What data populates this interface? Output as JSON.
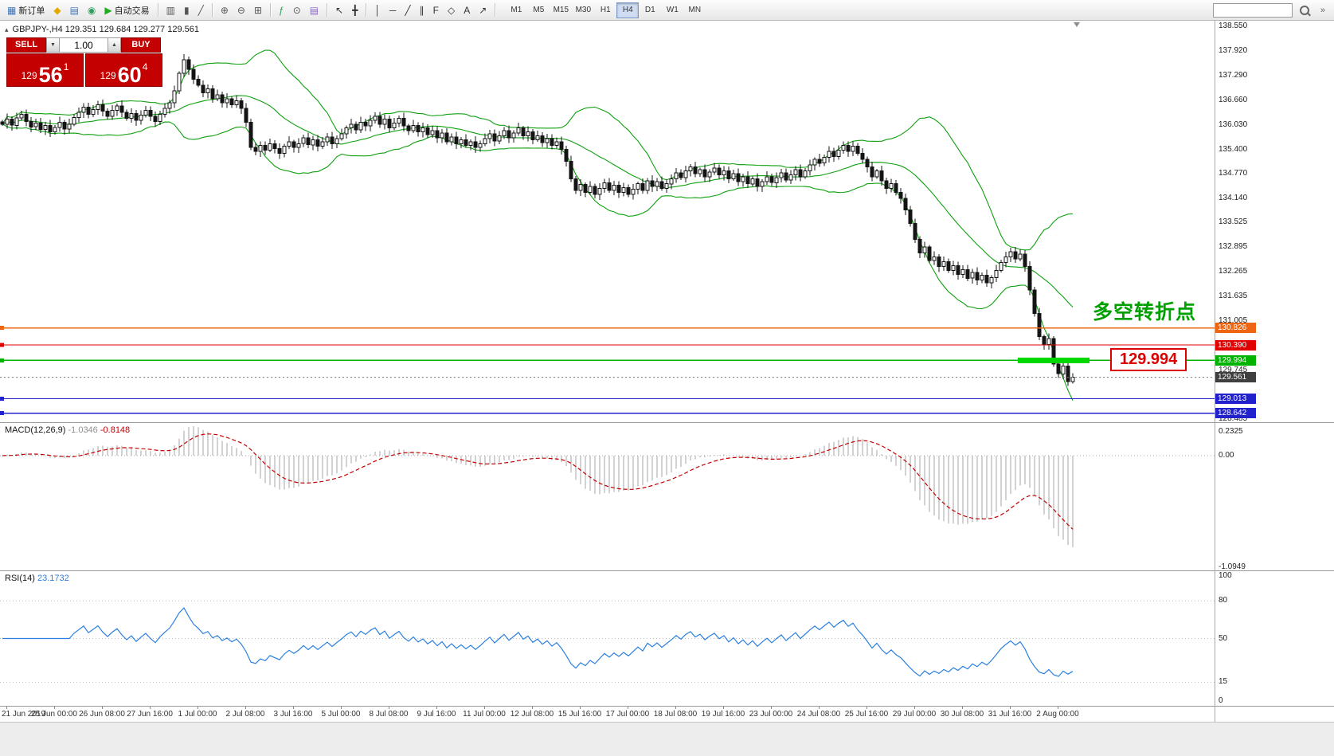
{
  "colors": {
    "candle_up": "#ffffff",
    "candle_down": "#141414",
    "candle_outline": "#141414",
    "bollinger": "#0fa00f",
    "macd_histogram": "#b3b3b3",
    "macd_signal": "#c40000",
    "rsi_line": "#2a7fde",
    "trade_red": "#c40000",
    "current_badge": "#3f3f3f",
    "grid_text": "#222222"
  },
  "toolbar": {
    "items": [
      {
        "kind": "button",
        "name": "new-order-button",
        "icon_name": "new-order-icon",
        "glyph": "▦",
        "icon_color": "#3c78c0",
        "label": "新订单"
      },
      {
        "kind": "icon",
        "name": "metaeditor-button",
        "icon_name": "metaeditor-icon",
        "glyph": "◆",
        "icon_color": "#e0a800"
      },
      {
        "kind": "icon",
        "name": "terminal-button",
        "icon_name": "terminal-icon",
        "glyph": "▤",
        "icon_color": "#3c78c0"
      },
      {
        "kind": "icon",
        "name": "navigator-button",
        "icon_name": "navigator-icon",
        "glyph": "◉",
        "icon_color": "#2e9e5b"
      },
      {
        "kind": "button",
        "name": "autotrading-button",
        "icon_name": "autotrading-play-icon",
        "glyph": "▶",
        "icon_color": "#1fae1f",
        "label": "自动交易"
      },
      {
        "kind": "sep"
      },
      {
        "kind": "icon",
        "name": "bar-chart-button",
        "icon_name": "bar-chart-icon",
        "glyph": "▥",
        "icon_color": "#555555"
      },
      {
        "kind": "icon",
        "name": "candlestick-chart-button",
        "icon_name": "candlestick-chart-icon",
        "glyph": "▮",
        "icon_color": "#555555"
      },
      {
        "kind": "icon",
        "name": "line-chart-button",
        "icon_name": "line-chart-icon",
        "glyph": "╱",
        "icon_color": "#555555"
      },
      {
        "kind": "sep"
      },
      {
        "kind": "icon",
        "name": "zoom-in-button",
        "icon_name": "zoom-in-icon",
        "glyph": "⊕",
        "icon_color": "#555555"
      },
      {
        "kind": "icon",
        "name": "zoom-out-button",
        "icon_name": "zoom-out-icon",
        "glyph": "⊖",
        "icon_color": "#555555"
      },
      {
        "kind": "icon",
        "name": "tile-windows-button",
        "icon_name": "tile-windows-icon",
        "glyph": "⊞",
        "icon_color": "#555555"
      },
      {
        "kind": "sep"
      },
      {
        "kind": "icon",
        "name": "indicators-button",
        "icon_name": "indicators-icon",
        "glyph": "ƒ",
        "icon_color": "#2e9e5b"
      },
      {
        "kind": "icon",
        "name": "periods-button",
        "icon_name": "clock-icon",
        "glyph": "⊙",
        "icon_color": "#555555"
      },
      {
        "kind": "icon",
        "name": "templates-button",
        "icon_name": "templates-icon",
        "glyph": "▤",
        "icon_color": "#8a6ac0"
      },
      {
        "kind": "sep"
      },
      {
        "kind": "icon",
        "name": "cursor-button",
        "icon_name": "cursor-icon",
        "glyph": "↖",
        "icon_color": "#333333"
      },
      {
        "kind": "icon",
        "name": "crosshair-button",
        "icon_name": "crosshair-icon",
        "glyph": "╋",
        "icon_color": "#333333"
      },
      {
        "kind": "sep"
      },
      {
        "kind": "icon",
        "name": "vertical-line-button",
        "icon_name": "vertical-line-icon",
        "glyph": "│",
        "icon_color": "#333333"
      },
      {
        "kind": "icon",
        "name": "horizontal-line-button",
        "icon_name": "horizontal-line-icon",
        "glyph": "─",
        "icon_color": "#333333"
      },
      {
        "kind": "icon",
        "name": "trendline-button",
        "icon_name": "trendline-icon",
        "glyph": "╱",
        "icon_color": "#333333"
      },
      {
        "kind": "icon",
        "name": "channel-button",
        "icon_name": "channel-icon",
        "glyph": "∥",
        "icon_color": "#333333"
      },
      {
        "kind": "icon",
        "name": "fibonacci-button",
        "icon_name": "fibonacci-icon",
        "glyph": "F",
        "icon_color": "#333333"
      },
      {
        "kind": "icon",
        "name": "shapes-button",
        "icon_name": "shapes-icon",
        "glyph": "◇",
        "icon_color": "#333333"
      },
      {
        "kind": "icon",
        "name": "text-button",
        "icon_name": "text-icon",
        "glyph": "A",
        "icon_color": "#333333"
      },
      {
        "kind": "icon",
        "name": "arrow-tools-button",
        "icon_name": "arrow-tools-icon",
        "glyph": "↗",
        "icon_color": "#333333"
      },
      {
        "kind": "sep"
      }
    ],
    "timeframes": [
      "M1",
      "M5",
      "M15",
      "M30",
      "H1",
      "H4",
      "D1",
      "W1",
      "MN"
    ],
    "active_timeframe": "H4",
    "search_value": "",
    "overflow_glyph": "»"
  },
  "chart": {
    "header": "GBPJPY-,H4  129.351 129.684 129.277 129.561",
    "one_click_toggle_glyph": "▴",
    "trade_panel": {
      "sell_label": "SELL",
      "buy_label": "BUY",
      "volume": "1.00",
      "volume_down_glyph": "▼",
      "volume_up_glyph": "▲",
      "sell_price": {
        "small": "129",
        "big": "56",
        "sup": "1"
      },
      "buy_price": {
        "small": "129",
        "big": "60",
        "sup": "4"
      }
    },
    "annotations": {
      "turning_point": {
        "text": "多空转折点",
        "color": "#00a000"
      },
      "price_callout": {
        "text": "129.994",
        "color": "#dd0000"
      },
      "highlight_segment": {
        "price": 129.994,
        "x": 1278,
        "width": 90,
        "color": "#00d800"
      }
    }
  },
  "panels": {
    "macd": {
      "name": "MACD(12,26,9)",
      "value": "-1.0346",
      "signal": "-0.8148"
    },
    "rsi": {
      "name": "RSI(14)",
      "value": "23.1732"
    }
  },
  "chart_data": {
    "type": "candlestick",
    "symbol": "GBPJPY-",
    "timeframe": "H4",
    "ohlc_display": {
      "open": 129.351,
      "high": 129.684,
      "low": 129.277,
      "close": 129.561
    },
    "price_range": [
      128.41,
      138.7
    ],
    "current_price": 129.561,
    "y_ticks": [
      138.55,
      137.92,
      137.29,
      136.66,
      136.03,
      135.4,
      134.77,
      134.14,
      133.525,
      132.895,
      132.265,
      131.635,
      131.005,
      129.745,
      128.485
    ],
    "horizontal_levels": [
      {
        "price": 130.826,
        "color": "#ee6611"
      },
      {
        "price": 130.39,
        "color": "#e00000"
      },
      {
        "price": 129.994,
        "color": "#00b300"
      },
      {
        "price": 129.013,
        "color": "#2222cc"
      },
      {
        "price": 128.642,
        "color": "#2222cc"
      }
    ],
    "closes": [
      136.05,
      136.18,
      136.02,
      136.21,
      136.3,
      136.12,
      135.98,
      136.08,
      135.91,
      136.02,
      135.85,
      135.96,
      136.1,
      135.92,
      136.05,
      136.22,
      136.35,
      136.48,
      136.3,
      136.42,
      136.55,
      136.38,
      136.25,
      136.4,
      136.52,
      136.35,
      136.2,
      136.32,
      136.15,
      136.28,
      136.4,
      136.25,
      136.12,
      136.3,
      136.45,
      136.6,
      136.9,
      137.35,
      137.7,
      137.45,
      137.2,
      137.05,
      136.85,
      136.95,
      136.7,
      136.8,
      136.6,
      136.7,
      136.55,
      136.65,
      136.45,
      136.1,
      135.45,
      135.35,
      135.5,
      135.38,
      135.55,
      135.42,
      135.3,
      135.48,
      135.6,
      135.45,
      135.55,
      135.7,
      135.52,
      135.65,
      135.48,
      135.6,
      135.72,
      135.55,
      135.68,
      135.8,
      135.95,
      136.05,
      135.9,
      136.1,
      136.0,
      136.15,
      136.25,
      136.05,
      136.18,
      135.95,
      136.08,
      136.2,
      136.0,
      135.88,
      136.02,
      135.85,
      135.95,
      135.78,
      135.88,
      135.7,
      135.82,
      135.6,
      135.72,
      135.55,
      135.65,
      135.5,
      135.6,
      135.45,
      135.55,
      135.68,
      135.8,
      135.62,
      135.75,
      135.88,
      135.7,
      135.82,
      135.95,
      135.75,
      135.85,
      135.65,
      135.75,
      135.58,
      135.68,
      135.5,
      135.6,
      135.4,
      135.1,
      134.65,
      134.35,
      134.5,
      134.3,
      134.45,
      134.25,
      134.4,
      134.55,
      134.35,
      134.48,
      134.3,
      134.42,
      134.25,
      134.38,
      134.52,
      134.35,
      134.6,
      134.45,
      134.58,
      134.4,
      134.52,
      134.65,
      134.8,
      134.68,
      134.85,
      134.95,
      134.78,
      134.88,
      134.7,
      134.82,
      134.92,
      134.75,
      134.85,
      134.65,
      134.78,
      134.58,
      134.7,
      134.52,
      134.65,
      134.45,
      134.58,
      134.7,
      134.55,
      134.68,
      134.8,
      134.62,
      134.75,
      134.88,
      134.7,
      134.85,
      135.0,
      135.15,
      135.05,
      135.2,
      135.35,
      135.22,
      135.38,
      135.5,
      135.35,
      135.48,
      135.3,
      135.15,
      134.95,
      134.7,
      134.85,
      134.6,
      134.4,
      134.52,
      134.3,
      134.15,
      133.85,
      133.5,
      133.1,
      132.75,
      132.9,
      132.55,
      132.65,
      132.4,
      132.52,
      132.3,
      132.42,
      132.2,
      132.32,
      132.1,
      132.25,
      132.05,
      132.18,
      131.98,
      132.12,
      132.3,
      132.5,
      132.65,
      132.78,
      132.6,
      132.72,
      132.4,
      131.8,
      131.2,
      130.6,
      130.4,
      130.55,
      129.9,
      129.65,
      129.85,
      129.45,
      129.561
    ],
    "x_labels": [
      "21 Jun 2019",
      "25 Jun 00:00",
      "26 Jun 08:00",
      "27 Jun 16:00",
      "1 Jul 00:00",
      "2 Jul 08:00",
      "3 Jul 16:00",
      "5 Jul 00:00",
      "8 Jul 08:00",
      "9 Jul 16:00",
      "11 Jul 00:00",
      "12 Jul 08:00",
      "15 Jul 16:00",
      "17 Jul 00:00",
      "18 Jul 08:00",
      "19 Jul 16:00",
      "23 Jul 00:00",
      "24 Jul 08:00",
      "25 Jul 16:00",
      "29 Jul 00:00",
      "30 Jul 08:00",
      "31 Jul 16:00",
      "2 Aug 00:00"
    ],
    "indicators": {
      "bollinger": {
        "period": 20,
        "deviation": 2,
        "color": "#0fa00f"
      },
      "macd": {
        "fast": 12,
        "slow": 26,
        "signal": 9,
        "scale_labels": [
          "0.2325",
          "0.00",
          "-1.0949"
        ],
        "value": -1.0346,
        "signal_value": -0.8148
      },
      "rsi": {
        "period": 14,
        "value": 23.1732,
        "levels": [
          100,
          80,
          50,
          15,
          0
        ]
      }
    }
  }
}
